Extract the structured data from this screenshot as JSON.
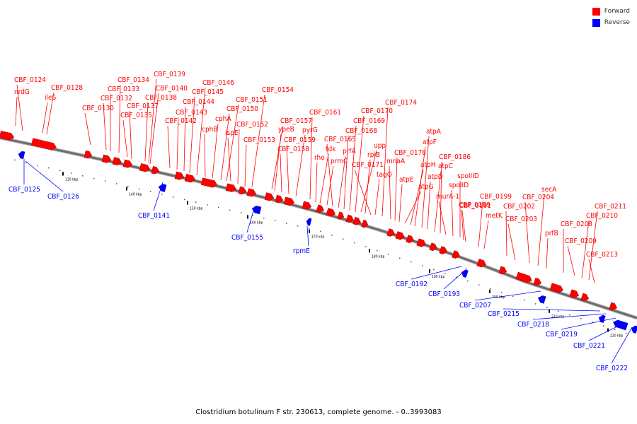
{
  "legend": {
    "forward_label": "Forward",
    "reverse_label": "Reverse",
    "forward_color": "#ff0000",
    "reverse_color": "#0000ff"
  },
  "caption": "Clostridium botulinum F str. 230613, complete genome. - 0..3993083",
  "axis": {
    "ticks": [
      "130 kbp",
      "140 kbp",
      "150 kbp",
      "160 kbp",
      "170 kbp",
      "180 kbp",
      "190 kbp",
      "200 kbp",
      "210 kbp",
      "220 kbp"
    ]
  },
  "forward_labels": [
    "CBF_0124",
    "nrdG",
    "CBF_0128",
    "ileS",
    "CBF_0130",
    "CBF_0132",
    "CBF_0133",
    "CBF_0134",
    "CBF_0135",
    "CBF_0137",
    "CBF_0138",
    "CBF_0139",
    "CBF_0140",
    "CBF_0142",
    "CBF_0143",
    "CBF_0144",
    "CBF_0145",
    "CBF_0146",
    "cphB",
    "cphA",
    "CBF_0150",
    "CBF_0151",
    "ispE",
    "CBF_0152",
    "CBF_0153",
    "CBF_0154",
    "CBF_0157",
    "ypeB",
    "CBF_0158",
    "CBF_0159",
    "pyrG",
    "CBF_0161",
    "rho",
    "tdk",
    "prmC",
    "CBF_0165",
    "prfA",
    "CBF_0168",
    "CBF_0169",
    "CBF_0170",
    "upp",
    "rpiB",
    "CBF_0171",
    "tagO",
    "CBF_0174",
    "mnaA",
    "CBF_0178",
    "atpE",
    "atpG",
    "atpH",
    "atpF",
    "atpA",
    "atpD",
    "atpC",
    "CBF_0186",
    "murA-1",
    "spoIID",
    "spoIIID",
    "CBF_0189",
    "CBF_0191",
    "metK",
    "CBF_0199",
    "CBF_0202",
    "CBF_0203",
    "CBF_0204",
    "secA",
    "prfB",
    "CBF_0208",
    "CBF_0209",
    "CBF_0210",
    "CBF_0211",
    "CBF_0213"
  ],
  "reverse_labels": [
    "CBF_0125",
    "CBF_0126",
    "CBF_0141",
    "CBF_0155",
    "rpmE",
    "CBF_0192",
    "CBF_0193",
    "CBF_0207",
    "CBF_0215",
    "CBF_0218",
    "CBF_0219",
    "CBF_0221",
    "CBF_0222"
  ]
}
